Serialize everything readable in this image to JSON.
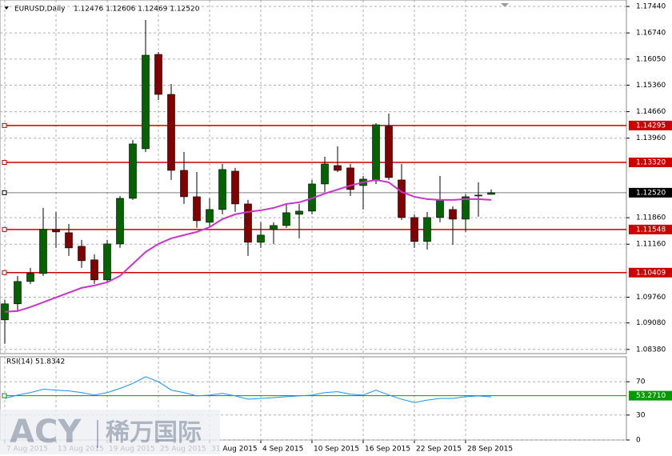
{
  "chart_data": [
    {
      "type": "candlestick",
      "title": "EURUSD,Daily",
      "subtitle": "1.12476 1.12606 1.12469 1.12520",
      "categories": [
        "7 Aug 2015",
        null,
        null,
        null,
        "13 Aug 2015",
        null,
        null,
        null,
        "19 Aug 2015",
        null,
        null,
        null,
        "25 Aug 2015",
        null,
        null,
        null,
        "31 Aug 2015",
        null,
        null,
        null,
        "4 Sep 2015",
        null,
        null,
        null,
        "10 Sep 2015",
        null,
        null,
        null,
        "16 Sep 2015",
        null,
        null,
        null,
        "22 Sep 2015",
        null,
        null,
        null,
        "28 Sep 2015",
        null,
        null
      ],
      "open": [
        1.09161,
        1.09584,
        1.10175,
        1.10386,
        1.11548,
        1.11463,
        1.11104,
        1.10746,
        1.10217,
        1.11167,
        1.12371,
        1.13681,
        1.16173,
        1.15117,
        1.1311,
        1.12413,
        1.11738,
        1.12076,
        1.13089,
        1.12223,
        1.1121,
        1.11548,
        1.11653,
        1.11949,
        1.12033,
        1.12751,
        1.13237,
        1.13174,
        1.12709,
        1.12836,
        1.14272,
        1.12857,
        1.11864,
        1.11231,
        1.11864,
        1.12076,
        1.11822,
        1.12434,
        1.12476
      ],
      "high": [
        1.09689,
        1.10323,
        1.10534,
        1.12118,
        1.12012,
        1.11696,
        1.11273,
        1.10893,
        1.11273,
        1.12434,
        1.13913,
        1.17081,
        1.16236,
        1.15391,
        1.13596,
        1.13068,
        1.12371,
        1.13279,
        1.13174,
        1.12329,
        1.11738,
        1.11738,
        1.12223,
        1.12223,
        1.12857,
        1.13469,
        1.13744,
        1.13279,
        1.12962,
        1.14356,
        1.1461,
        1.13279,
        1.11949,
        1.12012,
        1.12962,
        1.1216,
        1.12477,
        1.12794,
        1.12606
      ],
      "low": [
        1.08528,
        1.09373,
        1.10112,
        1.10323,
        1.11062,
        1.10851,
        1.10534,
        1.10112,
        1.10175,
        1.11062,
        1.12329,
        1.13596,
        1.14969,
        1.12857,
        1.12223,
        1.1159,
        1.1159,
        1.11949,
        1.12012,
        1.10851,
        1.11062,
        1.11167,
        1.1159,
        1.11315,
        1.11949,
        1.1254,
        1.13068,
        1.12434,
        1.12076,
        1.12751,
        1.12857,
        1.11801,
        1.11062,
        1.1102,
        1.11738,
        1.11146,
        1.11484,
        1.11885,
        1.12469
      ],
      "close": [
        1.09584,
        1.10175,
        1.10386,
        1.11548,
        1.11484,
        1.11062,
        1.10724,
        1.10217,
        1.11167,
        1.12371,
        1.13808,
        1.16152,
        1.15117,
        1.1311,
        1.12413,
        1.1178,
        1.12076,
        1.13132,
        1.12223,
        1.1121,
        1.114,
        1.11653,
        1.11991,
        1.12033,
        1.12751,
        1.13279,
        1.1311,
        1.12604,
        1.12878,
        1.14314,
        1.1292,
        1.11864,
        1.11231,
        1.11864,
        1.12329,
        1.11822,
        1.12413,
        1.12456,
        1.1252
      ],
      "up_color": "#006400",
      "down_color": "#800000",
      "line": {
        "color": "#cc33cc",
        "values": [
          1.09373,
          1.09394,
          1.09499,
          1.09626,
          1.09753,
          1.0988,
          1.10006,
          1.10069,
          1.10154,
          1.10323,
          1.1064,
          1.10956,
          1.11167,
          1.11315,
          1.114,
          1.11484,
          1.11611,
          1.11822,
          1.11949,
          1.12012,
          1.12054,
          1.12118,
          1.12223,
          1.12266,
          1.12371,
          1.12498,
          1.12604,
          1.12709,
          1.12794,
          1.12857,
          1.12794,
          1.1254,
          1.12413,
          1.1235,
          1.12329,
          1.12329,
          1.1235,
          1.1235,
          1.12329
        ]
      },
      "levels": [
        {
          "value": 1.14295,
          "label": "1.14295",
          "color": "#cc0000"
        },
        {
          "value": 1.1332,
          "label": "1.13320",
          "color": "#cc0000"
        },
        {
          "value": 1.11548,
          "label": "1.11548",
          "color": "#cc0000"
        },
        {
          "value": 1.10409,
          "label": "1.10409",
          "color": "#cc0000"
        },
        {
          "value": 1.1252,
          "label": "1.12520",
          "color": "#000000"
        }
      ],
      "ylim": [
        1.0827,
        1.1761
      ],
      "yticks": [
        {
          "value": 1.1744,
          "label": "1.17440"
        },
        {
          "value": 1.1674,
          "label": "1.16740"
        },
        {
          "value": 1.1605,
          "label": "1.16050"
        },
        {
          "value": 1.1536,
          "label": "1.15360"
        },
        {
          "value": 1.1466,
          "label": "1.14660"
        },
        {
          "value": 1.1396,
          "label": "1.13960"
        },
        {
          "value": 1.1186,
          "label": "1.11860"
        },
        {
          "value": 1.1116,
          "label": "1.11160"
        },
        {
          "value": 1.0976,
          "label": "1.09760"
        },
        {
          "value": 1.0908,
          "label": "1.09080"
        },
        {
          "value": 1.0838,
          "label": "1.08380"
        }
      ],
      "grid": true
    },
    {
      "type": "line",
      "title": "RSI(14) 51.8342",
      "color": "#1e90ff",
      "values": [
        50,
        54,
        57,
        61,
        60,
        59,
        57,
        54,
        57,
        62,
        68,
        76,
        70,
        60,
        57,
        53,
        54,
        56,
        53,
        49,
        50,
        51,
        52,
        53,
        54,
        57,
        58,
        55,
        54,
        60,
        54,
        49,
        45,
        48,
        50,
        50,
        52,
        53,
        51.8342
      ],
      "levels": [
        {
          "value": 53.271,
          "label": "53.2710",
          "color": "#009900"
        }
      ],
      "ylim": [
        0,
        100
      ],
      "yticks": [
        70,
        30,
        0
      ],
      "grid": true
    }
  ],
  "watermark": {
    "brand": "ACY",
    "name": "稀万国际"
  }
}
